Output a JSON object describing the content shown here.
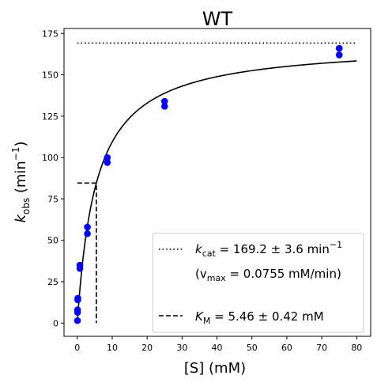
{
  "chart_data": {
    "type": "scatter",
    "title": "WT",
    "xlabel": "[S] (mM)",
    "ylabel": "k_obs (min^-1)",
    "xlim": [
      -3.8,
      84
    ],
    "ylim": [
      -8,
      178
    ],
    "xticks": [
      0,
      10,
      20,
      30,
      40,
      50,
      60,
      70,
      80
    ],
    "yticks": [
      0,
      25,
      50,
      75,
      100,
      125,
      150,
      175
    ],
    "grid": false,
    "legend_position": "bottom-right",
    "series": [
      {
        "kind": "points",
        "color": "#0000ff",
        "points": [
          [
            0.04,
            1.5
          ],
          [
            0.08,
            6.5
          ],
          [
            0.08,
            8
          ],
          [
            0.15,
            14
          ],
          [
            0.15,
            15
          ],
          [
            0.75,
            33
          ],
          [
            0.75,
            35
          ],
          [
            2.9,
            54
          ],
          [
            2.9,
            58
          ],
          [
            8.6,
            97
          ],
          [
            8.6,
            100
          ],
          [
            25,
            131
          ],
          [
            25,
            134
          ],
          [
            75,
            162
          ],
          [
            75,
            166
          ]
        ]
      },
      {
        "kind": "fit",
        "color": "#000000",
        "model": "michaelis-menten",
        "kcat": 169.2,
        "km": 5.46,
        "x_range": [
          0,
          80
        ]
      },
      {
        "kind": "kcat-line",
        "style": "dotted",
        "color": "#000000",
        "y": 169.2,
        "x_range": [
          0,
          80
        ]
      },
      {
        "kind": "km-line",
        "style": "dashed",
        "color": "#000000",
        "km": 5.46,
        "half_vmax": 84.6,
        "x_start": 0
      }
    ],
    "legend": {
      "kcat_symbol": "k",
      "kcat_sub": "cat",
      "kcat_rest": " = 169.2 ± 3.6 min",
      "kcat_sup": "−1",
      "vmax_open": "(v",
      "vmax_sub": "max",
      "vmax_rest": " = 0.0755 mM/min)",
      "km_symbol": "K",
      "km_sub": "M",
      "km_rest": " = 5.46 ± 0.42 mM"
    },
    "ylabel_parts": {
      "symbol": "k",
      "sub": "obs",
      "open": " (min",
      "sup": "−1",
      "close": ")"
    }
  }
}
